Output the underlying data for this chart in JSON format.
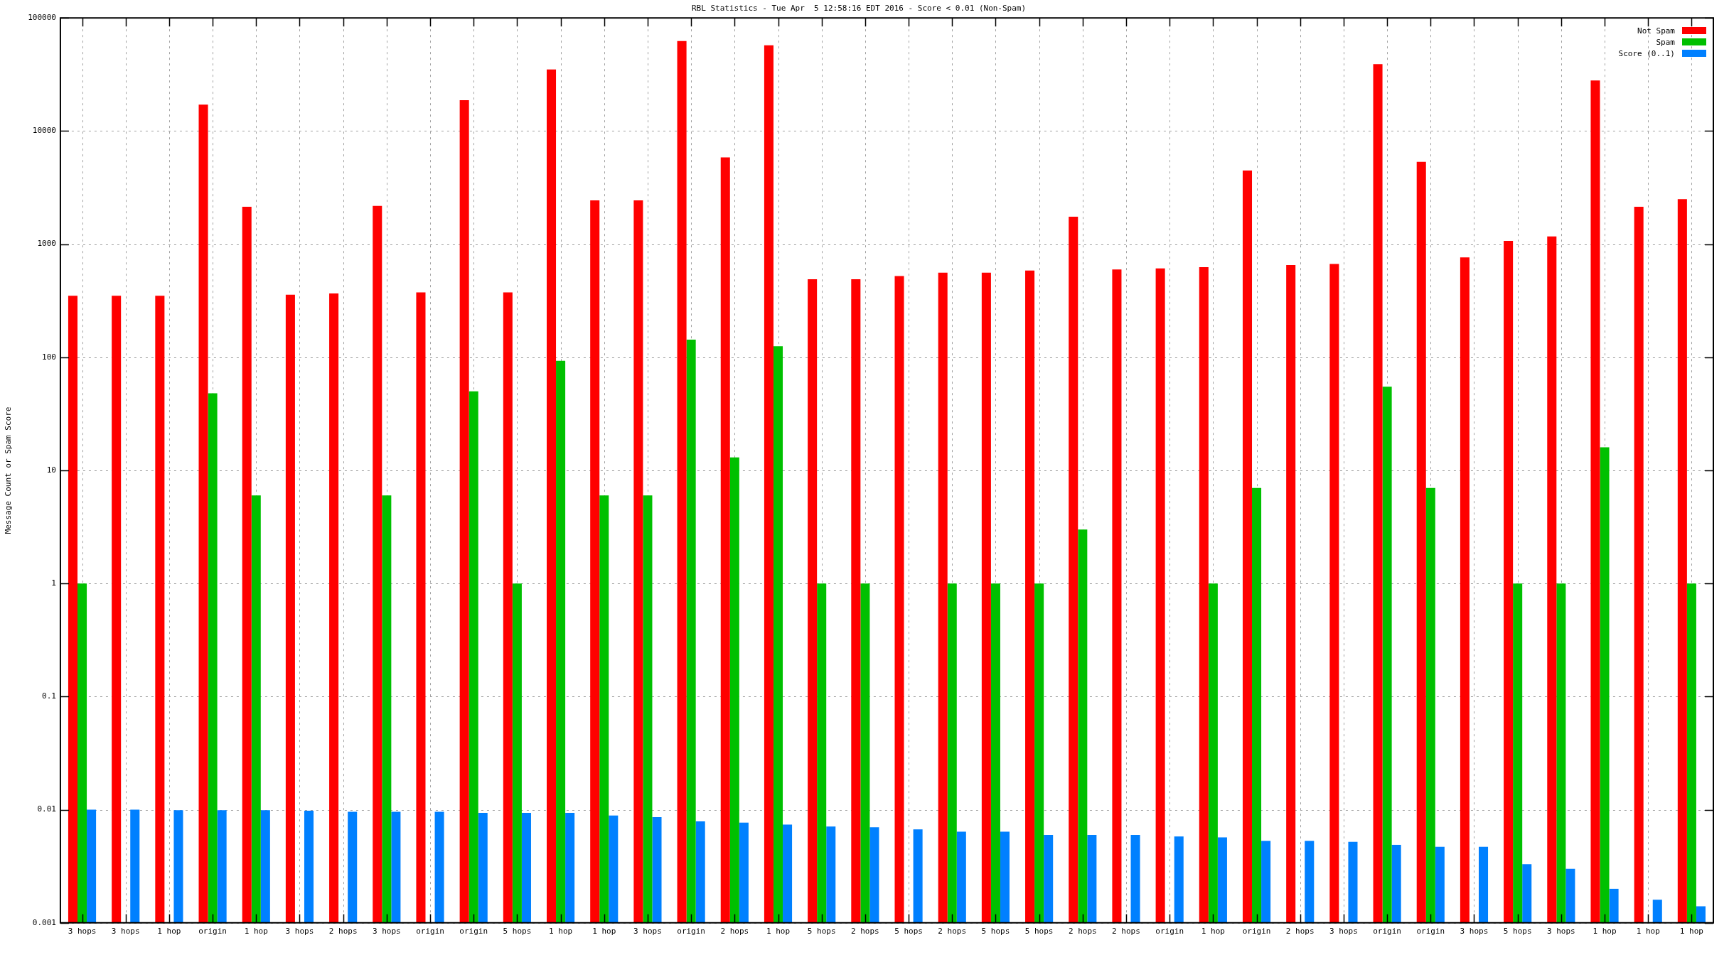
{
  "chart_data": {
    "type": "bar",
    "title": "RBL Statistics - Tue Apr  5 12:58:16 EDT 2016 - Score < 0.01 (Non-Spam)",
    "ylabel": "Message Count or Spam Score",
    "categories": [
      "3 hops",
      "3 hops",
      "1 hop",
      "origin",
      "1 hop",
      "3 hops",
      "2 hops",
      "3 hops",
      "origin",
      "origin",
      "5 hops",
      "1 hop",
      "1 hop",
      "3 hops",
      "origin",
      "2 hops",
      "1 hop",
      "5 hops",
      "2 hops",
      "5 hops",
      "2 hops",
      "5 hops",
      "5 hops",
      "2 hops",
      "2 hops",
      "origin",
      "1 hop",
      "origin",
      "2 hops",
      "3 hops",
      "origin",
      "origin",
      "3 hops",
      "5 hops",
      "3 hops",
      "1 hop",
      "1 hop",
      "1 hop"
    ],
    "series": [
      {
        "name": "Not Spam",
        "color": "#ff0000",
        "values": [
          350,
          350,
          350,
          17100,
          2140,
          357,
          366,
          2180,
          374,
          18700,
          374,
          35000,
          2440,
          2440,
          62500,
          5850,
          57200,
          489,
          489,
          523,
          559,
          559,
          585,
          1750,
          598,
          611,
          626,
          4470,
          654,
          669,
          39100,
          5350,
          764,
          1070,
          1170,
          28000,
          2140,
          2500
        ]
      },
      {
        "name": "Spam",
        "color": "#00c000",
        "values": [
          1,
          null,
          null,
          48,
          6,
          null,
          null,
          6,
          null,
          50,
          1,
          93,
          6,
          6,
          143,
          13,
          125,
          1,
          1,
          null,
          1,
          1,
          1,
          3,
          null,
          null,
          1,
          7,
          null,
          null,
          55,
          7,
          null,
          1,
          1,
          16,
          null,
          1
        ]
      },
      {
        "name": "Score (0..1)",
        "color": "#0080ff",
        "values": [
          0.01,
          0.01,
          0.0099,
          0.0099,
          0.0099,
          0.0098,
          0.0096,
          0.0096,
          0.0096,
          0.0094,
          0.0094,
          0.0094,
          0.0089,
          0.0086,
          0.0079,
          0.0077,
          0.0074,
          0.0071,
          0.007,
          0.0067,
          0.0064,
          0.0064,
          0.006,
          0.006,
          0.006,
          0.0058,
          0.0057,
          0.0053,
          0.0053,
          0.0052,
          0.0049,
          0.0047,
          0.0047,
          0.0033,
          0.003,
          0.002,
          0.0016,
          0.0014
        ]
      }
    ],
    "log": true,
    "ylim": [
      0.001,
      100000
    ],
    "yticks": [
      0.001,
      0.01,
      0.1,
      1,
      10,
      100,
      1000,
      10000,
      100000
    ],
    "grid": true,
    "legend": "top right"
  }
}
